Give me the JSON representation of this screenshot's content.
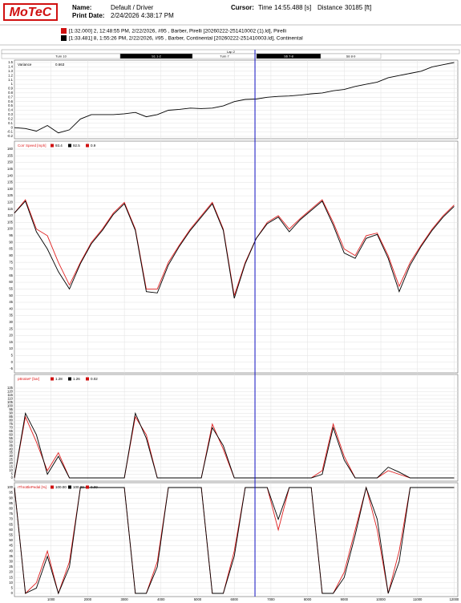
{
  "header": {
    "logo": "MoTeC",
    "name_label": "Name:",
    "name": "Default / Driver",
    "print_label": "Print Date:",
    "print_date": "2/24/2026 4:38:17 PM",
    "cursor_label": "Cursor:",
    "time_label": "Time",
    "time": "14:55.488 [s]",
    "distance_label": "Distance",
    "distance": "30185 [ft]",
    "laps": [
      "[1:32.000] 2, 12:48:55 PM, 2/22/2026, #95 , Barber, Pirelli [20260222-251410002 (1).ld], Pirelli",
      "[1:33.481] 8, 1:55:26 PM, 2/22/2026, #95 , Barber, Continental [20260222-251410003.ld], Continental"
    ]
  },
  "lap_bar": {
    "title": "Lap 2",
    "segments": [
      "Turn 10",
      "S1 1-2",
      "Turn 7",
      "S6 7-8",
      "S8 8-9"
    ]
  },
  "cursor": {
    "distance": 6565,
    "color": "#1010c0"
  },
  "chart_data": [
    {
      "type": "line",
      "title": "Variance",
      "readouts": [
        "0.663"
      ],
      "xlim": [
        0,
        12100
      ],
      "xticks": [
        1000,
        2000,
        3000,
        4000,
        5000,
        6000,
        7000,
        8000,
        9000,
        10000,
        11000,
        12000
      ],
      "ylim": [
        -0.2,
        1.5
      ],
      "yticks": [
        -0.2,
        -0.1,
        0,
        0.1,
        0.2,
        0.3,
        0.4,
        0.5,
        0.6,
        0.7,
        0.8,
        0.9,
        1,
        1.1,
        1.2,
        1.3,
        1.4,
        1.5
      ],
      "grid": true,
      "x": [
        0,
        300,
        600,
        900,
        1200,
        1500,
        1800,
        2100,
        2400,
        2700,
        3000,
        3300,
        3600,
        3900,
        4200,
        4500,
        4800,
        5100,
        5400,
        5700,
        6000,
        6300,
        6600,
        6900,
        7200,
        7500,
        7800,
        8100,
        8400,
        8700,
        9000,
        9300,
        9600,
        9900,
        10200,
        10500,
        10800,
        11100,
        11400,
        11700,
        12000
      ],
      "series": [
        {
          "color": "#000000",
          "values": [
            0,
            -0.02,
            -0.08,
            0.05,
            -0.12,
            -0.05,
            0.2,
            0.3,
            0.3,
            0.3,
            0.32,
            0.35,
            0.25,
            0.3,
            0.4,
            0.42,
            0.45,
            0.44,
            0.45,
            0.5,
            0.6,
            0.65,
            0.66,
            0.7,
            0.72,
            0.73,
            0.75,
            0.78,
            0.8,
            0.85,
            0.88,
            0.95,
            1.0,
            1.05,
            1.15,
            1.2,
            1.25,
            1.3,
            1.4,
            1.45,
            1.5
          ]
        }
      ]
    },
    {
      "type": "line",
      "title": "Corr Speed [mph]",
      "readouts": [
        "93.4",
        "92.5",
        "0.9"
      ],
      "xlim": [
        0,
        12100
      ],
      "xticks": [
        1000,
        2000,
        3000,
        4000,
        5000,
        6000,
        7000,
        8000,
        9000,
        10000,
        11000,
        12000
      ],
      "ylim": [
        -5,
        160
      ],
      "yticks": [
        -5,
        0,
        5,
        10,
        15,
        20,
        25,
        30,
        35,
        40,
        45,
        50,
        55,
        60,
        65,
        70,
        75,
        80,
        85,
        90,
        95,
        100,
        105,
        110,
        115,
        120,
        125,
        130,
        135,
        140,
        145,
        150,
        155,
        160
      ],
      "grid": true,
      "x": [
        0,
        300,
        600,
        900,
        1200,
        1500,
        1800,
        2100,
        2400,
        2700,
        3000,
        3300,
        3600,
        3900,
        4200,
        4500,
        4800,
        5100,
        5400,
        5700,
        6000,
        6300,
        6600,
        6900,
        7200,
        7500,
        7800,
        8100,
        8400,
        8700,
        9000,
        9300,
        9600,
        9900,
        10200,
        10500,
        10800,
        11100,
        11400,
        11700,
        12000
      ],
      "series": [
        {
          "color": "#e02020",
          "values": [
            112,
            122,
            100,
            95,
            75,
            58,
            75,
            90,
            100,
            112,
            120,
            100,
            55,
            55,
            75,
            88,
            100,
            110,
            120,
            100,
            50,
            75,
            93,
            105,
            110,
            100,
            108,
            115,
            122,
            105,
            85,
            80,
            95,
            97,
            80,
            57,
            75,
            88,
            100,
            110,
            118
          ]
        },
        {
          "color": "#000000",
          "values": [
            112,
            121,
            98,
            85,
            68,
            55,
            74,
            89,
            99,
            111,
            119,
            99,
            53,
            52,
            73,
            87,
            99,
            109,
            119,
            99,
            48,
            74,
            93,
            104,
            109,
            98,
            107,
            114,
            121,
            103,
            82,
            78,
            93,
            96,
            78,
            53,
            73,
            87,
            99,
            109,
            117
          ]
        }
      ]
    },
    {
      "type": "line",
      "title": "pBrakeF [bar]",
      "readouts": [
        "1.28",
        "1.26",
        "0.02"
      ],
      "xlim": [
        0,
        12100
      ],
      "xticks": [
        1000,
        2000,
        3000,
        4000,
        5000,
        6000,
        7000,
        8000,
        9000,
        10000,
        11000,
        12000
      ],
      "ylim": [
        0,
        125
      ],
      "yticks": [
        0,
        5,
        10,
        15,
        20,
        25,
        30,
        35,
        40,
        45,
        50,
        55,
        60,
        65,
        70,
        75,
        80,
        85,
        90,
        95,
        100,
        105,
        110,
        115,
        120,
        125
      ],
      "grid": true,
      "x": [
        0,
        300,
        600,
        900,
        1200,
        1500,
        1800,
        2100,
        2400,
        2700,
        3000,
        3300,
        3600,
        3900,
        4200,
        4500,
        4800,
        5100,
        5400,
        5700,
        6000,
        6300,
        6600,
        6900,
        7200,
        7500,
        7800,
        8100,
        8400,
        8700,
        9000,
        9300,
        9600,
        9900,
        10200,
        10500,
        10800,
        11100,
        11400,
        11700,
        12000
      ],
      "series": [
        {
          "color": "#e02020",
          "values": [
            0,
            85,
            50,
            10,
            35,
            0,
            0,
            0,
            0,
            0,
            0,
            85,
            60,
            0,
            0,
            0,
            0,
            0,
            75,
            40,
            0,
            0,
            0,
            0,
            0,
            0,
            0,
            0,
            10,
            75,
            30,
            0,
            0,
            0,
            10,
            5,
            0,
            0,
            0,
            0,
            0
          ]
        },
        {
          "color": "#000000",
          "values": [
            0,
            90,
            60,
            5,
            30,
            0,
            0,
            0,
            0,
            0,
            0,
            90,
            55,
            0,
            0,
            0,
            0,
            0,
            70,
            45,
            0,
            0,
            0,
            0,
            0,
            0,
            0,
            0,
            5,
            70,
            25,
            0,
            0,
            0,
            15,
            8,
            0,
            0,
            0,
            0,
            0
          ]
        }
      ]
    },
    {
      "type": "line",
      "title": "rThrottlePedal [%]",
      "readouts": [
        "100.00",
        "100.00",
        "0.00"
      ],
      "xlim": [
        0,
        12100
      ],
      "xticks": [
        1000,
        2000,
        3000,
        4000,
        5000,
        6000,
        7000,
        8000,
        9000,
        10000,
        11000,
        12000
      ],
      "ylim": [
        0,
        100
      ],
      "yticks": [
        0,
        5,
        10,
        15,
        20,
        25,
        30,
        35,
        40,
        45,
        50,
        55,
        60,
        65,
        70,
        75,
        80,
        85,
        90,
        95,
        100
      ],
      "grid": true,
      "x": [
        0,
        300,
        600,
        900,
        1200,
        1500,
        1800,
        2100,
        2400,
        2700,
        3000,
        3300,
        3600,
        3900,
        4200,
        4500,
        4800,
        5100,
        5400,
        5700,
        6000,
        6300,
        6600,
        6900,
        7200,
        7500,
        7800,
        8100,
        8400,
        8700,
        9000,
        9300,
        9600,
        9900,
        10200,
        10500,
        10800,
        11100,
        11400,
        11700,
        12000
      ],
      "series": [
        {
          "color": "#e02020",
          "values": [
            100,
            0,
            10,
            40,
            0,
            30,
            100,
            100,
            100,
            100,
            100,
            0,
            0,
            30,
            100,
            100,
            100,
            100,
            0,
            0,
            40,
            100,
            100,
            100,
            60,
            100,
            100,
            100,
            0,
            0,
            20,
            60,
            100,
            60,
            0,
            40,
            100,
            100,
            100,
            100,
            100
          ]
        },
        {
          "color": "#000000",
          "values": [
            100,
            0,
            5,
            35,
            0,
            25,
            100,
            100,
            100,
            100,
            100,
            0,
            0,
            25,
            100,
            100,
            100,
            100,
            0,
            0,
            35,
            100,
            100,
            100,
            70,
            100,
            100,
            100,
            0,
            0,
            15,
            55,
            100,
            70,
            0,
            30,
            100,
            100,
            100,
            100,
            100
          ]
        }
      ]
    }
  ]
}
